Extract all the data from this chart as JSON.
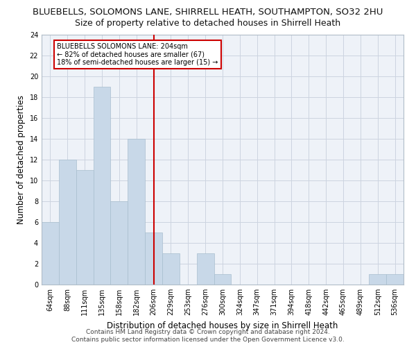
{
  "title": "BLUEBELLS, SOLOMONS LANE, SHIRRELL HEATH, SOUTHAMPTON, SO32 2HU",
  "subtitle": "Size of property relative to detached houses in Shirrell Heath",
  "xlabel": "Distribution of detached houses by size in Shirrell Heath",
  "ylabel": "Number of detached properties",
  "footer_line1": "Contains HM Land Registry data © Crown copyright and database right 2024.",
  "footer_line2": "Contains public sector information licensed under the Open Government Licence v3.0.",
  "categories": [
    "64sqm",
    "88sqm",
    "111sqm",
    "135sqm",
    "158sqm",
    "182sqm",
    "206sqm",
    "229sqm",
    "253sqm",
    "276sqm",
    "300sqm",
    "324sqm",
    "347sqm",
    "371sqm",
    "394sqm",
    "418sqm",
    "442sqm",
    "465sqm",
    "489sqm",
    "512sqm",
    "536sqm"
  ],
  "values": [
    6,
    12,
    11,
    19,
    8,
    14,
    5,
    3,
    0,
    3,
    1,
    0,
    0,
    0,
    0,
    0,
    0,
    0,
    0,
    1,
    1
  ],
  "bar_color": "#c8d8e8",
  "bar_edgecolor": "#a8bece",
  "vline_x": 6,
  "vline_color": "#cc0000",
  "annotation_text": "BLUEBELLS SOLOMONS LANE: 204sqm\n← 82% of detached houses are smaller (67)\n18% of semi-detached houses are larger (15) →",
  "annotation_box_edgecolor": "#cc0000",
  "annotation_box_facecolor": "#ffffff",
  "ylim": [
    0,
    24
  ],
  "yticks": [
    0,
    2,
    4,
    6,
    8,
    10,
    12,
    14,
    16,
    18,
    20,
    22,
    24
  ],
  "grid_color": "#ccd4e0",
  "background_color": "#eef2f8",
  "title_fontsize": 9.5,
  "subtitle_fontsize": 9,
  "ylabel_fontsize": 8.5,
  "xlabel_fontsize": 8.5,
  "tick_fontsize": 7,
  "annotation_fontsize": 7,
  "footer_fontsize": 6.5
}
